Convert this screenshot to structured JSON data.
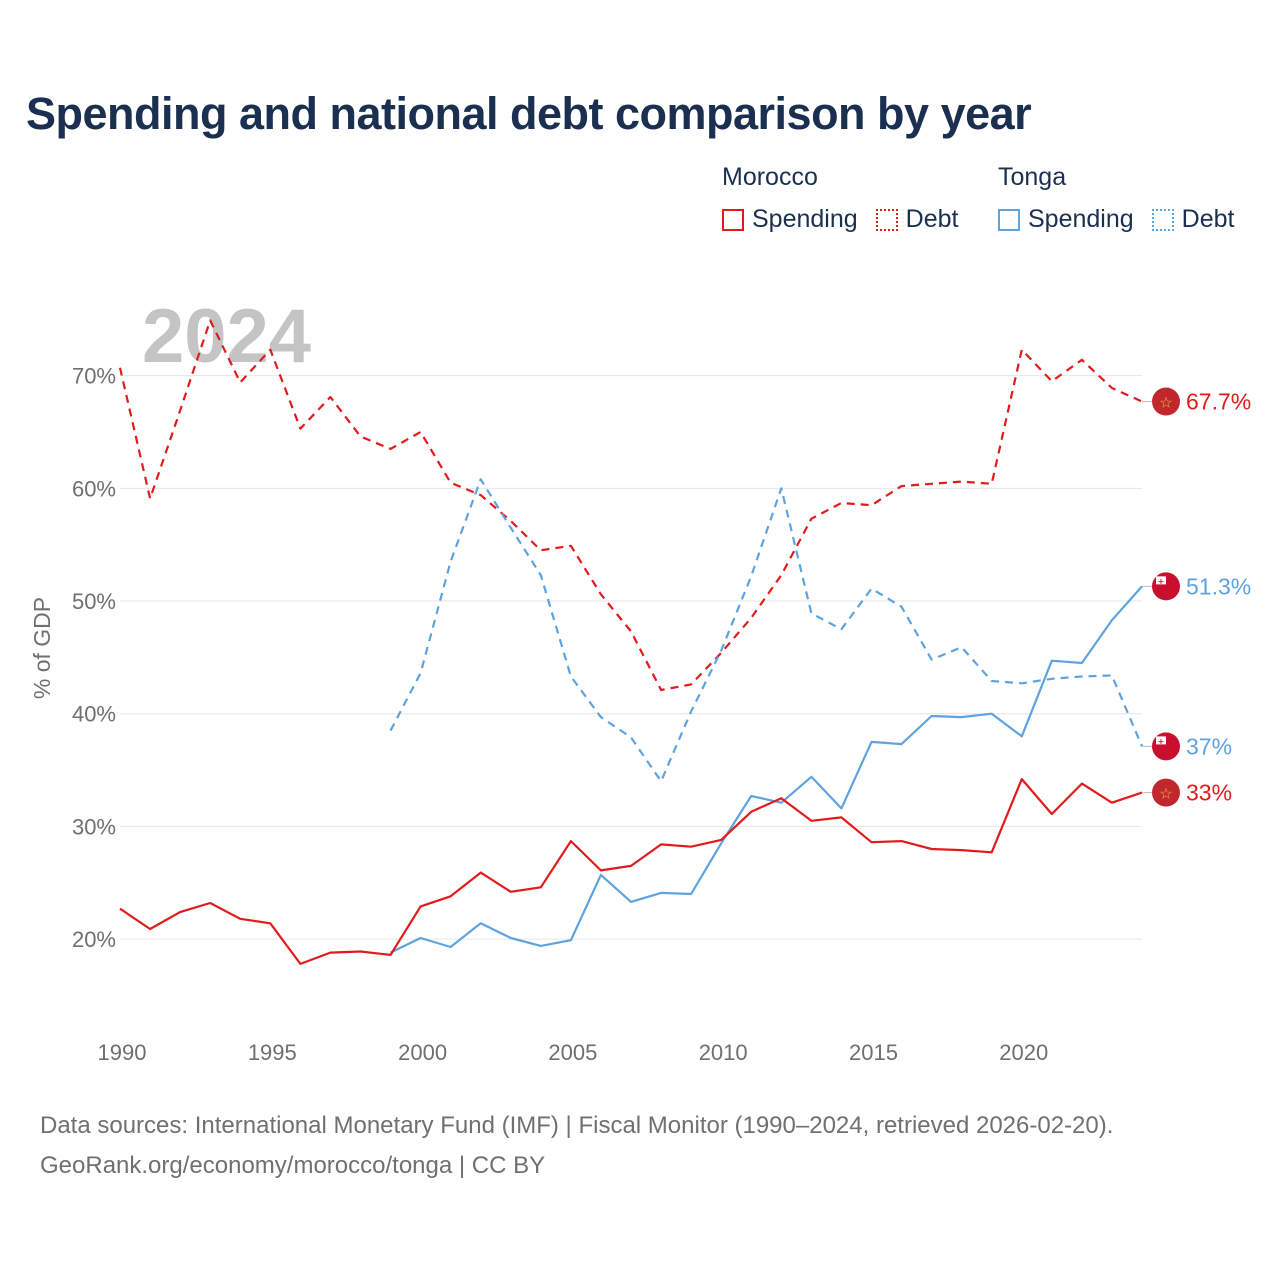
{
  "title": "Spending and national debt comparison by year",
  "legend": {
    "groups": [
      {
        "name": "Morocco",
        "color": "#e31a1c",
        "items": [
          {
            "label": "Spending",
            "style": "solid"
          },
          {
            "label": "Debt",
            "style": "dotted"
          }
        ]
      },
      {
        "name": "Tonga",
        "color": "#5ea3e0",
        "items": [
          {
            "label": "Spending",
            "style": "solid"
          },
          {
            "label": "Debt",
            "style": "dotted"
          }
        ]
      }
    ]
  },
  "chart_data": {
    "type": "line",
    "year_label": "2024",
    "ylabel": "% of GDP",
    "ylim": [
      13,
      76
    ],
    "xlim": [
      1990,
      2024
    ],
    "yticks": [
      20,
      30,
      40,
      50,
      60,
      70
    ],
    "ytick_labels": [
      "20%",
      "30%",
      "40%",
      "50%",
      "60%",
      "70%"
    ],
    "xticks": [
      1990,
      1995,
      2000,
      2005,
      2010,
      2015,
      2020
    ],
    "xtick_labels": [
      "1990",
      "1995",
      "2000",
      "2005",
      "2010",
      "2015",
      "2020"
    ],
    "series": [
      {
        "name": "Morocco Debt",
        "country": "morocco",
        "color": "#e31a1c",
        "dash": "dashed",
        "end_label": "67.7%",
        "start_year": 1990,
        "values": [
          70.7,
          59.1,
          66.9,
          74.9,
          69.4,
          72.3,
          65.3,
          68.1,
          64.6,
          63.5,
          65.0,
          60.5,
          59.4,
          57.1,
          54.5,
          54.9,
          50.6,
          47.3,
          42.1,
          42.6,
          45.4,
          48.5,
          52.3,
          57.3,
          58.7,
          58.5,
          60.2,
          60.4,
          60.6,
          60.4,
          72.3,
          69.5,
          71.4,
          68.9,
          67.7
        ]
      },
      {
        "name": "Tonga Debt",
        "country": "tonga",
        "color": "#5ea3e0",
        "dash": "dashed",
        "end_label": "37%",
        "start_year": 1999,
        "values": [
          38.5,
          43.6,
          53.5,
          60.8,
          56.5,
          52.3,
          43.3,
          39.7,
          37.9,
          34.0,
          40.2,
          45.6,
          52.2,
          60.0,
          48.9,
          47.5,
          51.1,
          49.5,
          44.8,
          45.9,
          42.9,
          42.7,
          43.1,
          43.3,
          43.4,
          37.1
        ]
      },
      {
        "name": "Tonga Spending",
        "country": "tonga",
        "color": "#5ea3e0",
        "dash": "solid",
        "end_label": "51.3%",
        "start_year": 1999,
        "values": [
          18.8,
          20.1,
          19.3,
          21.4,
          20.1,
          19.4,
          19.9,
          25.7,
          23.3,
          24.1,
          24.0,
          28.5,
          32.7,
          32.1,
          34.4,
          31.6,
          37.5,
          37.3,
          39.8,
          39.7,
          40.0,
          38.0,
          44.7,
          44.5,
          48.3,
          51.3
        ]
      },
      {
        "name": "Morocco Spending",
        "country": "morocco",
        "color": "#e31a1c",
        "dash": "solid",
        "end_label": "33%",
        "start_year": 1990,
        "values": [
          22.7,
          20.9,
          22.4,
          23.2,
          21.8,
          21.4,
          17.8,
          18.8,
          18.9,
          18.6,
          22.9,
          23.8,
          25.9,
          24.2,
          24.6,
          28.7,
          26.1,
          26.5,
          28.4,
          28.2,
          28.8,
          31.3,
          32.5,
          30.5,
          30.8,
          28.6,
          28.7,
          28.0,
          27.9,
          27.7,
          34.2,
          31.1,
          33.8,
          32.1,
          33.0
        ]
      }
    ]
  },
  "footer": {
    "line1": "Data sources: International Monetary Fund (IMF) | Fiscal Monitor (1990–2024, retrieved 2026-02-20).",
    "line2": "GeoRank.org/economy/morocco/tonga | CC BY"
  }
}
